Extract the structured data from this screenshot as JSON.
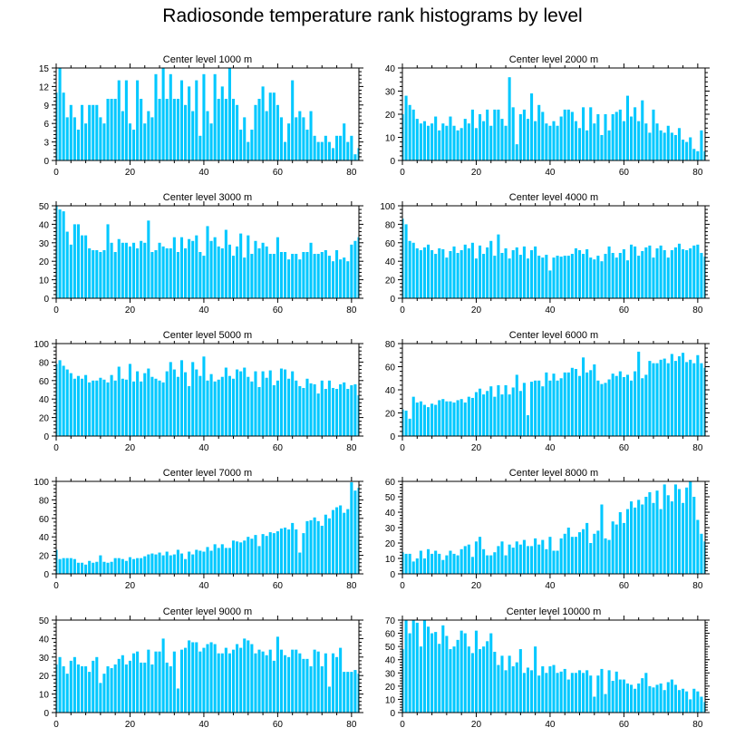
{
  "title": "Radiosonde temperature rank histograms by level",
  "bar_color": "#00c8ff",
  "chart_data": [
    {
      "type": "bar",
      "title": "Center level 1000 m",
      "xlim": [
        0,
        82
      ],
      "ylim": [
        0,
        15
      ],
      "xticks": [
        0,
        20,
        40,
        60,
        80
      ],
      "yticks": [
        0,
        3,
        6,
        9,
        12,
        15
      ],
      "values": [
        11,
        15,
        11,
        7,
        9,
        7,
        5,
        9,
        6,
        9,
        9,
        9,
        7,
        6,
        10,
        10,
        10,
        13,
        8,
        13,
        6,
        5,
        13,
        10,
        6,
        8,
        7,
        14,
        10,
        15,
        10,
        14,
        10,
        10,
        13,
        9,
        12,
        8,
        13,
        4,
        14,
        8,
        6,
        14,
        10,
        12,
        10,
        15,
        10,
        9,
        5,
        7,
        3,
        5,
        9,
        10,
        12,
        8,
        11,
        11,
        9,
        7,
        3,
        6,
        13,
        7,
        8,
        7,
        5,
        8,
        4,
        3,
        3,
        4,
        3,
        2,
        4,
        4,
        6,
        3,
        4,
        1,
        2
      ]
    },
    {
      "type": "bar",
      "title": "Center level 2000 m",
      "xlim": [
        0,
        82
      ],
      "ylim": [
        0,
        40
      ],
      "xticks": [
        0,
        20,
        40,
        60,
        80
      ],
      "yticks": [
        0,
        10,
        20,
        30,
        40
      ],
      "values": [
        20,
        28,
        24,
        22,
        18,
        16,
        17,
        15,
        16,
        19,
        13,
        16,
        15,
        19,
        15,
        13,
        14,
        18,
        16,
        22,
        14,
        20,
        17,
        22,
        15,
        22,
        22,
        18,
        15,
        36,
        23,
        7,
        20,
        22,
        18,
        29,
        17,
        24,
        21,
        16,
        15,
        17,
        15,
        19,
        22,
        22,
        21,
        17,
        14,
        23,
        13,
        23,
        16,
        20,
        11,
        20,
        13,
        20,
        21,
        22,
        17,
        28,
        19,
        23,
        17,
        26,
        16,
        12,
        22,
        16,
        13,
        12,
        15,
        12,
        11,
        14,
        9,
        8,
        10,
        5,
        4,
        13,
        4
      ]
    },
    {
      "type": "bar",
      "title": "Center level 3000 m",
      "xlim": [
        0,
        82
      ],
      "ylim": [
        0,
        50
      ],
      "xticks": [
        0,
        20,
        40,
        60,
        80
      ],
      "yticks": [
        0,
        10,
        20,
        30,
        40,
        50
      ],
      "values": [
        50,
        48,
        47,
        36,
        29,
        40,
        40,
        34,
        34,
        27,
        26,
        26,
        25,
        26,
        40,
        30,
        25,
        32,
        30,
        30,
        28,
        30,
        27,
        31,
        30,
        42,
        25,
        26,
        30,
        28,
        27,
        27,
        33,
        25,
        33,
        27,
        32,
        31,
        34,
        25,
        23,
        39,
        31,
        33,
        28,
        27,
        37,
        29,
        23,
        28,
        35,
        22,
        34,
        24,
        31,
        27,
        30,
        28,
        24,
        24,
        33,
        25,
        25,
        21,
        24,
        24,
        21,
        25,
        25,
        30,
        24,
        24,
        25,
        26,
        23,
        20,
        26,
        21,
        22,
        20,
        29,
        31,
        33
      ]
    },
    {
      "type": "bar",
      "title": "Center level 4000 m",
      "xlim": [
        0,
        82
      ],
      "ylim": [
        0,
        100
      ],
      "xticks": [
        0,
        20,
        40,
        60,
        80
      ],
      "yticks": [
        0,
        20,
        40,
        60,
        80,
        100
      ],
      "values": [
        86,
        80,
        62,
        60,
        54,
        52,
        55,
        58,
        52,
        48,
        54,
        53,
        44,
        51,
        56,
        49,
        52,
        58,
        54,
        60,
        43,
        57,
        48,
        55,
        62,
        46,
        69,
        49,
        54,
        43,
        52,
        55,
        47,
        56,
        43,
        52,
        56,
        46,
        44,
        47,
        30,
        44,
        46,
        45,
        46,
        46,
        48,
        54,
        52,
        48,
        53,
        44,
        42,
        46,
        40,
        48,
        56,
        49,
        44,
        49,
        53,
        41,
        58,
        56,
        46,
        51,
        55,
        57,
        44,
        54,
        57,
        52,
        44,
        52,
        55,
        59,
        53,
        52,
        54,
        57,
        58,
        49,
        45
      ]
    },
    {
      "type": "bar",
      "title": "Center level 5000 m",
      "xlim": [
        0,
        82
      ],
      "ylim": [
        0,
        100
      ],
      "xticks": [
        0,
        20,
        40,
        60,
        80
      ],
      "yticks": [
        0,
        20,
        40,
        60,
        80,
        100
      ],
      "values": [
        78,
        82,
        76,
        72,
        68,
        62,
        65,
        62,
        66,
        58,
        60,
        60,
        63,
        61,
        58,
        66,
        60,
        75,
        62,
        61,
        78,
        59,
        70,
        59,
        68,
        73,
        64,
        62,
        60,
        58,
        70,
        80,
        72,
        64,
        82,
        69,
        54,
        80,
        72,
        65,
        86,
        60,
        67,
        59,
        61,
        64,
        74,
        65,
        62,
        72,
        70,
        74,
        64,
        59,
        70,
        53,
        70,
        63,
        71,
        55,
        60,
        73,
        72,
        62,
        70,
        60,
        54,
        52,
        62,
        57,
        56,
        46,
        60,
        51,
        60,
        52,
        51,
        56,
        58,
        51,
        55,
        56,
        44
      ]
    },
    {
      "type": "bar",
      "title": "Center level 6000 m",
      "xlim": [
        0,
        82
      ],
      "ylim": [
        0,
        80
      ],
      "xticks": [
        0,
        20,
        40,
        60,
        80
      ],
      "yticks": [
        0,
        20,
        40,
        60,
        80
      ],
      "values": [
        23,
        22,
        15,
        34,
        29,
        30,
        27,
        25,
        28,
        27,
        31,
        32,
        30,
        30,
        29,
        31,
        32,
        29,
        34,
        33,
        38,
        41,
        36,
        39,
        43,
        34,
        44,
        36,
        44,
        36,
        42,
        53,
        39,
        46,
        18,
        47,
        48,
        48,
        43,
        55,
        48,
        54,
        48,
        50,
        55,
        55,
        59,
        58,
        52,
        68,
        55,
        57,
        62,
        48,
        45,
        46,
        49,
        54,
        52,
        56,
        51,
        53,
        48,
        56,
        73,
        50,
        53,
        65,
        63,
        63,
        66,
        67,
        63,
        71,
        65,
        69,
        72,
        64,
        66,
        63,
        70,
        63,
        59
      ]
    },
    {
      "type": "bar",
      "title": "Center level 7000 m",
      "xlim": [
        0,
        82
      ],
      "ylim": [
        0,
        100
      ],
      "xticks": [
        0,
        20,
        40,
        60,
        80
      ],
      "yticks": [
        0,
        20,
        40,
        60,
        80,
        100
      ],
      "values": [
        26,
        16,
        17,
        17,
        17,
        16,
        12,
        12,
        10,
        14,
        12,
        13,
        20,
        13,
        12,
        13,
        17,
        17,
        16,
        14,
        18,
        16,
        17,
        17,
        19,
        21,
        22,
        21,
        23,
        20,
        24,
        20,
        21,
        26,
        22,
        16,
        24,
        21,
        26,
        25,
        24,
        29,
        25,
        32,
        28,
        32,
        28,
        28,
        36,
        35,
        34,
        36,
        40,
        38,
        42,
        30,
        43,
        41,
        45,
        44,
        46,
        49,
        50,
        48,
        55,
        48,
        23,
        44,
        57,
        58,
        61,
        57,
        52,
        64,
        60,
        69,
        72,
        74,
        66,
        70,
        99,
        90,
        93
      ]
    },
    {
      "type": "bar",
      "title": "Center level 8000 m",
      "xlim": [
        0,
        82
      ],
      "ylim": [
        0,
        60
      ],
      "xticks": [
        0,
        20,
        40,
        60,
        80
      ],
      "yticks": [
        0,
        10,
        20,
        30,
        40,
        50,
        60
      ],
      "values": [
        14,
        13,
        13,
        8,
        10,
        15,
        10,
        16,
        13,
        15,
        13,
        9,
        12,
        15,
        13,
        12,
        16,
        18,
        19,
        11,
        21,
        24,
        16,
        12,
        12,
        14,
        18,
        21,
        12,
        19,
        17,
        21,
        19,
        22,
        18,
        18,
        23,
        19,
        22,
        16,
        24,
        15,
        15,
        23,
        26,
        30,
        24,
        24,
        27,
        29,
        33,
        20,
        26,
        28,
        45,
        23,
        22,
        34,
        32,
        40,
        33,
        42,
        47,
        43,
        48,
        45,
        50,
        53,
        46,
        54,
        42,
        58,
        51,
        47,
        58,
        55,
        46,
        56,
        60,
        50,
        35,
        26,
        21
      ]
    },
    {
      "type": "bar",
      "title": "Center level 9000 m",
      "xlim": [
        0,
        82
      ],
      "ylim": [
        0,
        50
      ],
      "xticks": [
        0,
        20,
        40,
        60,
        80
      ],
      "yticks": [
        0,
        10,
        20,
        30,
        40,
        50
      ],
      "values": [
        26,
        30,
        25,
        21,
        28,
        30,
        26,
        25,
        25,
        22,
        28,
        30,
        16,
        21,
        25,
        24,
        26,
        29,
        31,
        26,
        28,
        32,
        33,
        27,
        27,
        34,
        26,
        33,
        33,
        40,
        27,
        25,
        33,
        13,
        34,
        35,
        39,
        38,
        38,
        33,
        35,
        37,
        38,
        37,
        32,
        32,
        35,
        32,
        34,
        37,
        35,
        40,
        39,
        37,
        32,
        34,
        33,
        31,
        34,
        28,
        41,
        34,
        31,
        30,
        34,
        34,
        32,
        29,
        29,
        25,
        34,
        33,
        25,
        32,
        14,
        32,
        30,
        35,
        22,
        22,
        22,
        23,
        21
      ]
    },
    {
      "type": "bar",
      "title": "Center level 10000 m",
      "xlim": [
        0,
        82
      ],
      "ylim": [
        0,
        70
      ],
      "xticks": [
        0,
        20,
        40,
        60,
        80
      ],
      "yticks": [
        0,
        10,
        20,
        30,
        40,
        50,
        60,
        70
      ],
      "values": [
        48,
        70,
        60,
        70,
        68,
        50,
        70,
        65,
        60,
        61,
        52,
        66,
        58,
        48,
        50,
        55,
        62,
        60,
        50,
        45,
        62,
        48,
        50,
        54,
        60,
        46,
        36,
        43,
        32,
        43,
        35,
        38,
        48,
        30,
        34,
        32,
        50,
        28,
        35,
        30,
        35,
        36,
        30,
        31,
        33,
        25,
        30,
        30,
        32,
        30,
        32,
        28,
        12,
        28,
        33,
        14,
        32,
        24,
        31,
        25,
        25,
        22,
        21,
        18,
        22,
        26,
        30,
        20,
        19,
        21,
        22,
        17,
        23,
        25,
        21,
        17,
        18,
        16,
        10,
        18,
        16,
        12,
        8
      ]
    }
  ]
}
